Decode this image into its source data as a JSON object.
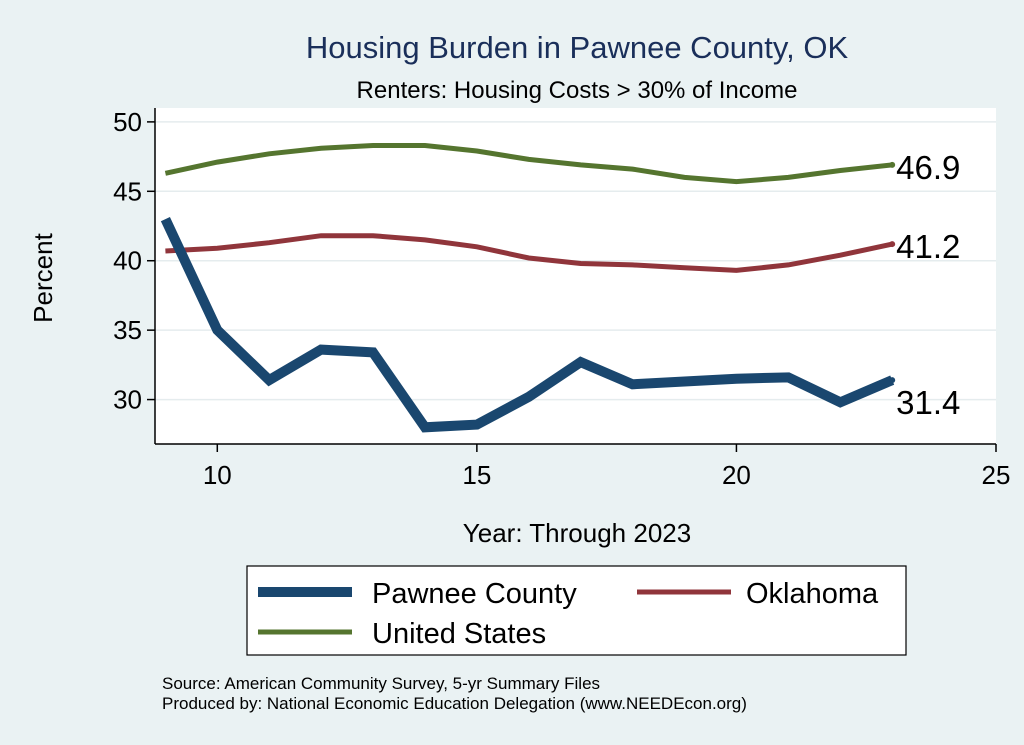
{
  "chart_data": {
    "type": "line",
    "title": "Housing Burden in Pawnee County, OK",
    "subtitle": "Renters: Housing Costs > 30% of Income",
    "xlabel": "Year: Through 2023",
    "ylabel": "Percent",
    "xlim": [
      8.8,
      25
    ],
    "ylim": [
      26.8,
      51
    ],
    "xticks": [
      10,
      15,
      20,
      25
    ],
    "yticks": [
      30,
      35,
      40,
      45,
      50
    ],
    "grid": true,
    "legend_position": "bottom",
    "x": [
      9,
      10,
      11,
      12,
      13,
      14,
      15,
      16,
      17,
      18,
      19,
      20,
      21,
      22,
      23
    ],
    "series": [
      {
        "name": "Pawnee County",
        "color": "#1a476f",
        "end_label": "31.4",
        "values": [
          43.0,
          35.0,
          31.4,
          33.6,
          33.4,
          28.0,
          28.2,
          30.2,
          32.7,
          31.1,
          31.3,
          31.5,
          31.6,
          29.8,
          31.4
        ]
      },
      {
        "name": "Oklahoma",
        "color": "#90353b",
        "end_label": "41.2",
        "values": [
          40.7,
          40.9,
          41.3,
          41.8,
          41.8,
          41.5,
          41.0,
          40.2,
          39.8,
          39.7,
          39.5,
          39.3,
          39.7,
          40.4,
          41.2
        ]
      },
      {
        "name": "United States",
        "color": "#55752f",
        "end_label": "46.9",
        "values": [
          46.3,
          47.1,
          47.7,
          48.1,
          48.3,
          48.3,
          47.9,
          47.3,
          46.9,
          46.6,
          46.0,
          45.7,
          46.0,
          46.5,
          46.9
        ]
      }
    ]
  },
  "source": {
    "line1": "Source: American Community Survey, 5-yr Summary Files",
    "line2": "Produced by: National Economic Education Delegation (www.NEEDEcon.org)"
  }
}
